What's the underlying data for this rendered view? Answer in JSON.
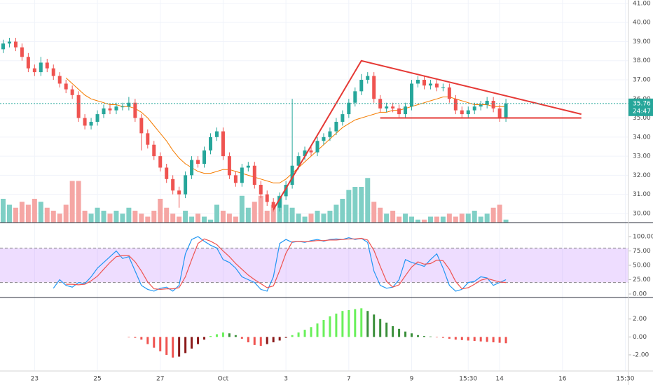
{
  "chart_data": [
    {
      "type": "candlestick",
      "open": [
        38.6,
        38.9,
        39.0,
        38.7,
        38.2,
        37.6,
        37.4,
        37.9,
        37.6,
        37.2,
        36.8,
        36.5,
        36.2,
        35.0,
        34.6,
        34.8,
        35.2,
        35.5,
        35.4,
        35.6,
        35.6,
        35.8,
        35.0,
        34.2,
        33.6,
        33.0,
        32.4,
        31.8,
        31.2,
        31.0,
        32.0,
        32.8,
        32.6,
        33.3,
        34.0,
        34.3,
        33.0,
        32.0,
        31.6,
        32.4,
        32.5,
        31.5,
        31.0,
        30.6,
        30.3,
        30.9,
        31.5,
        32.5,
        33.0,
        33.3,
        33.2,
        33.8,
        34.0,
        34.3,
        34.8,
        35.2,
        35.8,
        36.4,
        37.0,
        37.2,
        36.0,
        35.5,
        35.6,
        35.5,
        35.2,
        35.6,
        36.8,
        37.0,
        36.7,
        36.8,
        36.6,
        36.6,
        36.0,
        35.4,
        35.2,
        35.4,
        35.6,
        35.7,
        35.9,
        35.5,
        35.0
      ],
      "high": [
        39.1,
        39.2,
        39.2,
        38.9,
        38.4,
        37.8,
        38.2,
        38.1,
        37.8,
        37.4,
        37.0,
        36.7,
        36.4,
        35.2,
        35.0,
        35.4,
        35.7,
        35.7,
        35.8,
        35.8,
        36.1,
        36.0,
        35.2,
        34.4,
        33.8,
        33.2,
        32.6,
        32.0,
        31.4,
        32.2,
        33.0,
        33.0,
        33.5,
        34.2,
        34.5,
        34.5,
        33.2,
        32.2,
        32.6,
        32.7,
        32.7,
        31.7,
        31.2,
        30.8,
        31.1,
        31.7,
        36.0,
        33.2,
        33.5,
        33.5,
        34.0,
        34.2,
        34.5,
        35.0,
        35.4,
        36.0,
        36.6,
        37.3,
        37.4,
        37.4,
        36.2,
        35.8,
        35.8,
        35.7,
        35.8,
        37.0,
        37.2,
        37.2,
        37.0,
        37.0,
        36.8,
        36.8,
        36.2,
        35.6,
        35.6,
        35.8,
        35.9,
        36.1,
        36.1,
        35.7,
        36.0
      ],
      "low": [
        38.4,
        38.7,
        38.5,
        38.0,
        37.4,
        37.2,
        37.2,
        37.4,
        37.0,
        36.6,
        36.3,
        36.0,
        34.8,
        34.4,
        34.4,
        34.6,
        35.0,
        35.2,
        35.2,
        35.4,
        35.4,
        34.8,
        33.3,
        33.4,
        32.8,
        32.2,
        31.6,
        31.0,
        30.3,
        30.8,
        31.8,
        32.4,
        32.4,
        33.1,
        33.8,
        32.8,
        31.8,
        31.4,
        31.4,
        32.2,
        31.3,
        30.8,
        30.4,
        30.1,
        30.1,
        30.7,
        31.3,
        32.3,
        32.8,
        33.0,
        33.0,
        33.6,
        33.8,
        34.1,
        34.6,
        35.0,
        35.6,
        36.2,
        36.8,
        35.8,
        35.3,
        35.3,
        35.3,
        35.0,
        35.0,
        35.4,
        36.6,
        36.5,
        36.5,
        36.4,
        36.4,
        35.8,
        35.2,
        35.0,
        35.0,
        35.2,
        35.4,
        35.5,
        35.3,
        34.8,
        34.8
      ],
      "close": [
        38.9,
        39.0,
        38.7,
        38.2,
        37.6,
        37.4,
        37.9,
        37.6,
        37.2,
        36.8,
        36.5,
        36.2,
        35.0,
        34.6,
        34.8,
        35.2,
        35.5,
        35.4,
        35.6,
        35.6,
        35.8,
        35.0,
        34.2,
        33.6,
        33.0,
        32.4,
        31.8,
        31.2,
        31.0,
        32.0,
        32.8,
        32.6,
        33.3,
        34.0,
        34.3,
        33.0,
        32.0,
        31.6,
        32.4,
        32.5,
        31.5,
        31.0,
        30.6,
        30.3,
        30.9,
        31.5,
        32.5,
        33.0,
        33.3,
        33.2,
        33.8,
        34.0,
        34.3,
        34.8,
        35.2,
        35.8,
        36.4,
        37.0,
        37.2,
        36.0,
        35.5,
        35.6,
        35.5,
        35.2,
        35.6,
        36.8,
        37.0,
        36.7,
        36.8,
        36.6,
        36.6,
        36.0,
        35.4,
        35.2,
        35.4,
        35.6,
        35.7,
        35.9,
        35.5,
        35.0,
        35.76
      ],
      "volume": [
        40,
        30,
        25,
        35,
        30,
        40,
        35,
        25,
        20,
        15,
        30,
        70,
        70,
        20,
        15,
        25,
        20,
        15,
        20,
        15,
        25,
        20,
        15,
        10,
        20,
        40,
        25,
        15,
        10,
        20,
        10,
        15,
        10,
        5,
        30,
        20,
        15,
        10,
        45,
        25,
        35,
        45,
        20,
        30,
        45,
        30,
        25,
        15,
        10,
        15,
        20,
        15,
        20,
        30,
        40,
        55,
        60,
        60,
        75,
        35,
        25,
        15,
        20,
        10,
        15,
        10,
        5,
        5,
        10,
        10,
        10,
        15,
        10,
        15,
        15,
        20,
        10,
        15,
        25,
        30,
        5
      ],
      "ma": [
        null,
        null,
        null,
        null,
        null,
        null,
        null,
        null,
        null,
        null,
        37.1,
        36.8,
        36.5,
        36.2,
        36.0,
        35.9,
        35.8,
        35.7,
        35.7,
        35.6,
        35.6,
        35.5,
        35.3,
        35.0,
        34.6,
        34.2,
        33.8,
        33.3,
        32.9,
        32.6,
        32.4,
        32.2,
        32.1,
        32.1,
        32.2,
        32.3,
        32.3,
        32.2,
        32.1,
        32.0,
        31.9,
        31.8,
        31.7,
        31.6,
        31.6,
        31.8,
        32.1,
        32.4,
        32.7,
        33.0,
        33.3,
        33.6,
        33.9,
        34.2,
        34.5,
        34.7,
        34.9,
        35.0,
        35.1,
        35.2,
        35.3,
        35.3,
        35.4,
        35.4,
        35.5,
        35.6,
        35.7,
        35.8,
        35.9,
        36.0,
        36.1,
        36.1,
        36.0,
        35.9,
        35.8,
        35.7,
        35.7,
        35.7,
        35.6,
        35.6,
        35.6
      ],
      "ma_color": "#f57c00",
      "up_color": "#26a69a",
      "down_color": "#ef5350",
      "volume_up_color": "#7fcfc5",
      "volume_down_color": "#f5a6a4",
      "drawings": [
        {
          "x": [
            43,
            57,
            92
          ],
          "y": [
            30.2,
            38.0,
            35.2
          ]
        },
        {
          "x": [
            60,
            92
          ],
          "y": [
            35.0,
            35.0
          ]
        }
      ],
      "drawing_color": "#e53935",
      "last_price": 35.76,
      "last_price_color": "#26a69a",
      "countdown": "24:47",
      "xlim": [
        -0.5,
        99.5
      ],
      "xticks": [
        {
          "value": 5,
          "label": "23"
        },
        {
          "value": 15,
          "label": "25"
        },
        {
          "value": 25,
          "label": "27"
        },
        {
          "value": 35,
          "label": "Oct"
        },
        {
          "value": 45,
          "label": "3"
        },
        {
          "value": 55,
          "label": "7"
        },
        {
          "value": 65,
          "label": "9"
        },
        {
          "value": 74,
          "label": "15:30"
        },
        {
          "value": 79,
          "label": "14"
        },
        {
          "value": 89,
          "label": "16"
        },
        {
          "value": 99,
          "label": "15:30"
        }
      ],
      "ylim": [
        29.52,
        41.18
      ],
      "yticks": [
        {
          "value": 30,
          "label": "30.00"
        },
        {
          "value": 31,
          "label": "31.00"
        },
        {
          "value": 32,
          "label": "32.00"
        },
        {
          "value": 33,
          "label": "33.00"
        },
        {
          "value": 34,
          "label": "34.00"
        },
        {
          "value": 35,
          "label": "35.00"
        },
        {
          "value": 36,
          "label": "36.00"
        },
        {
          "value": 37,
          "label": "37.00"
        },
        {
          "value": 38,
          "label": "38.00"
        },
        {
          "value": 39,
          "label": "39.00"
        },
        {
          "value": 40,
          "label": "40.00"
        },
        {
          "value": 41,
          "label": "41.00"
        }
      ],
      "grid": true
    },
    {
      "type": "line",
      "series": [
        {
          "color": "#2196f3",
          "values": [
            null,
            null,
            null,
            null,
            null,
            null,
            null,
            null,
            10,
            25,
            15,
            12,
            20,
            18,
            30,
            45,
            55,
            65,
            75,
            62,
            65,
            40,
            15,
            8,
            5,
            10,
            12,
            5,
            15,
            70,
            95,
            100,
            92,
            85,
            80,
            60,
            55,
            45,
            30,
            25,
            20,
            8,
            5,
            30,
            88,
            95,
            90,
            92,
            90,
            93,
            95,
            92,
            95,
            96,
            95,
            98,
            95,
            97,
            90,
            40,
            15,
            10,
            12,
            25,
            60,
            55,
            52,
            48,
            60,
            70,
            45,
            15,
            5,
            8,
            20,
            22,
            30,
            28,
            15,
            20,
            25
          ]
        },
        {
          "color": "#ef5350",
          "values": [
            null,
            null,
            null,
            null,
            null,
            null,
            null,
            null,
            null,
            null,
            17,
            17,
            16,
            17,
            23,
            31,
            43,
            55,
            65,
            67,
            67,
            56,
            40,
            21,
            9,
            8,
            9,
            9,
            11,
            30,
            60,
            88,
            96,
            92,
            86,
            75,
            65,
            53,
            43,
            33,
            25,
            18,
            11,
            14,
            41,
            71,
            91,
            92,
            91,
            92,
            93,
            93,
            94,
            94,
            95,
            96,
            96,
            97,
            94,
            76,
            48,
            22,
            12,
            16,
            32,
            47,
            56,
            52,
            53,
            59,
            58,
            43,
            22,
            9,
            11,
            17,
            24,
            27,
            24,
            21,
            20
          ]
        }
      ],
      "band": [
        20,
        80
      ],
      "band_color": "rgba(178, 102, 255, 0.22)",
      "ylim": [
        -6.1,
        124.4
      ],
      "yticks": [
        {
          "value": 0,
          "label": "0.00"
        },
        {
          "value": 25,
          "label": "25.00"
        },
        {
          "value": 50,
          "label": "50.00"
        },
        {
          "value": 75,
          "label": "75.00"
        },
        {
          "value": 100,
          "label": "100.00"
        }
      ]
    },
    {
      "type": "bar",
      "values": [
        0,
        0,
        0,
        0,
        0,
        0,
        0,
        0,
        0,
        0,
        0,
        0,
        0,
        0,
        0,
        0,
        0,
        0,
        0,
        0,
        -0.05,
        -0.1,
        -0.3,
        -0.8,
        -1.2,
        -1.6,
        -2.0,
        -2.3,
        -2.2,
        -1.8,
        -1.3,
        -0.8,
        -0.3,
        0.1,
        0.3,
        0.5,
        0.4,
        0.2,
        -0.2,
        -0.6,
        -0.9,
        -1.0,
        -0.8,
        -0.6,
        -0.4,
        -0.1,
        0.2,
        0.5,
        0.8,
        1.1,
        1.5,
        1.9,
        2.3,
        2.6,
        2.9,
        3.0,
        3.1,
        3.2,
        2.9,
        2.5,
        2.0,
        1.6,
        1.2,
        0.9,
        0.6,
        0.4,
        0.2,
        0.1,
        0.05,
        -0.05,
        -0.1,
        -0.2,
        -0.3,
        -0.35,
        -0.4,
        -0.45,
        -0.5,
        -0.55,
        -0.6,
        -0.65,
        -0.7
      ],
      "color_up": "#69f05a",
      "color_up_fading": "#3a8f3a",
      "color_down": "#ef5350",
      "color_down_fading": "#8b1a1a",
      "ylim": [
        -3.8,
        4.4
      ],
      "yticks": [
        {
          "value": -2,
          "label": "-2.00"
        },
        {
          "value": 0,
          "label": "0.00"
        },
        {
          "value": 2,
          "label": "2.00"
        }
      ]
    }
  ]
}
